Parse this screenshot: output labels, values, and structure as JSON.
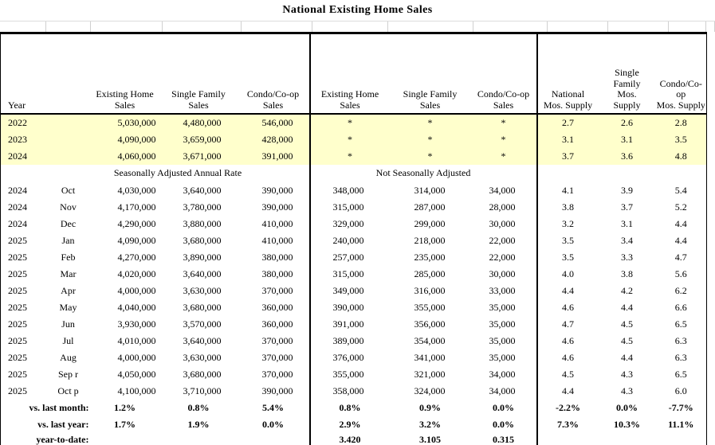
{
  "title": "National Existing Home Sales",
  "colors": {
    "highlight": "#FFFFCC",
    "border": "#000000",
    "grid_light": "#D0D0D0"
  },
  "table": {
    "year_header": "Year",
    "headers": {
      "saar": [
        "Existing Home\nSales",
        "Single Family\nSales",
        "Condo/Co-op\nSales"
      ],
      "nsa": [
        "Existing Home\nSales",
        "Single Family\nSales",
        "Condo/Co-op\nSales"
      ],
      "supply": [
        "National\nMos. Supply",
        "Single\nFamily\nMos.\nSupply",
        "Condo/Co-op\nMos. Supply"
      ]
    },
    "section_labels": {
      "saar": "Seasonally Adjusted Annual Rate",
      "nsa": "Not Seasonally Adjusted"
    },
    "annual_rows": [
      {
        "year": "2022",
        "values": [
          "5,030,000",
          "4,480,000",
          "546,000",
          "*",
          "*",
          "*",
          "2.7",
          "2.6",
          "2.8"
        ]
      },
      {
        "year": "2023",
        "values": [
          "4,090,000",
          "3,659,000",
          "428,000",
          "*",
          "*",
          "*",
          "3.1",
          "3.1",
          "3.5"
        ]
      },
      {
        "year": "2024",
        "values": [
          "4,060,000",
          "3,671,000",
          "391,000",
          "*",
          "*",
          "*",
          "3.7",
          "3.6",
          "4.8"
        ]
      }
    ],
    "monthly_rows": [
      {
        "year": "2024",
        "month": "Oct",
        "values": [
          "4,030,000",
          "3,640,000",
          "390,000",
          "348,000",
          "314,000",
          "34,000",
          "4.1",
          "3.9",
          "5.4"
        ]
      },
      {
        "year": "2024",
        "month": "Nov",
        "values": [
          "4,170,000",
          "3,780,000",
          "390,000",
          "315,000",
          "287,000",
          "28,000",
          "3.8",
          "3.7",
          "5.2"
        ]
      },
      {
        "year": "2024",
        "month": "Dec",
        "values": [
          "4,290,000",
          "3,880,000",
          "410,000",
          "329,000",
          "299,000",
          "30,000",
          "3.2",
          "3.1",
          "4.4"
        ]
      },
      {
        "year": "2025",
        "month": "Jan",
        "values": [
          "4,090,000",
          "3,680,000",
          "410,000",
          "240,000",
          "218,000",
          "22,000",
          "3.5",
          "3.4",
          "4.4"
        ]
      },
      {
        "year": "2025",
        "month": "Feb",
        "values": [
          "4,270,000",
          "3,890,000",
          "380,000",
          "257,000",
          "235,000",
          "22,000",
          "3.5",
          "3.3",
          "4.7"
        ]
      },
      {
        "year": "2025",
        "month": "Mar",
        "values": [
          "4,020,000",
          "3,640,000",
          "380,000",
          "315,000",
          "285,000",
          "30,000",
          "4.0",
          "3.8",
          "5.6"
        ]
      },
      {
        "year": "2025",
        "month": "Apr",
        "values": [
          "4,000,000",
          "3,630,000",
          "370,000",
          "349,000",
          "316,000",
          "33,000",
          "4.4",
          "4.2",
          "6.2"
        ]
      },
      {
        "year": "2025",
        "month": "May",
        "values": [
          "4,040,000",
          "3,680,000",
          "360,000",
          "390,000",
          "355,000",
          "35,000",
          "4.6",
          "4.4",
          "6.6"
        ]
      },
      {
        "year": "2025",
        "month": "Jun",
        "values": [
          "3,930,000",
          "3,570,000",
          "360,000",
          "391,000",
          "356,000",
          "35,000",
          "4.7",
          "4.5",
          "6.5"
        ]
      },
      {
        "year": "2025",
        "month": "Jul",
        "values": [
          "4,010,000",
          "3,640,000",
          "370,000",
          "389,000",
          "354,000",
          "35,000",
          "4.6",
          "4.5",
          "6.3"
        ]
      },
      {
        "year": "2025",
        "month": "Aug",
        "values": [
          "4,000,000",
          "3,630,000",
          "370,000",
          "376,000",
          "341,000",
          "35,000",
          "4.6",
          "4.4",
          "6.3"
        ]
      },
      {
        "year": "2025",
        "month": "Sep r",
        "values": [
          "4,050,000",
          "3,680,000",
          "370,000",
          "355,000",
          "321,000",
          "34,000",
          "4.5",
          "4.3",
          "6.5"
        ]
      },
      {
        "year": "2025",
        "month": "Oct p",
        "values": [
          "4,100,000",
          "3,710,000",
          "390,000",
          "358,000",
          "324,000",
          "34,000",
          "4.4",
          "4.3",
          "6.0"
        ]
      }
    ],
    "summary_rows": [
      {
        "label": "vs. last month:",
        "values": [
          "1.2%",
          "0.8%",
          "5.4%",
          "0.8%",
          "0.9%",
          "0.0%",
          "-2.2%",
          "0.0%",
          "-7.7%"
        ]
      },
      {
        "label": "vs. last year:",
        "values": [
          "1.7%",
          "1.9%",
          "0.0%",
          "2.9%",
          "3.2%",
          "0.0%",
          "7.3%",
          "10.3%",
          "11.1%"
        ]
      },
      {
        "label": "year-to-date:",
        "values": [
          "",
          "",
          "",
          "3.420",
          "3.105",
          "0.315",
          "",
          "",
          ""
        ]
      }
    ]
  }
}
